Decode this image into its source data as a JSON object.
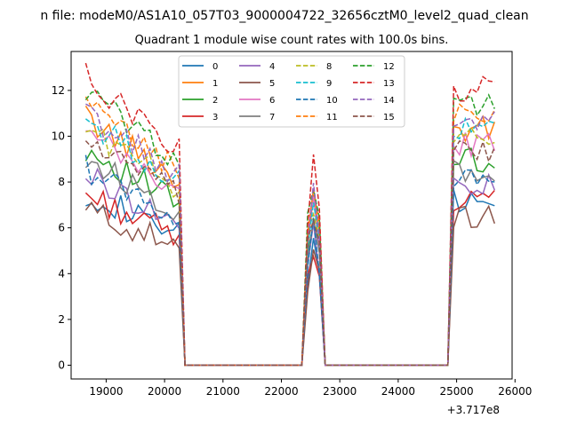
{
  "chart_data": {
    "type": "line",
    "suptitle": "n file: modeM0/AS1A10_057T03_9000004722_32656cztM0_level2_quad_clean",
    "title": "Quadrant 1 module wise count rates with 100.0s bins.",
    "xlabel": "",
    "ylabel": "",
    "x_offset_label": "+3.717e8",
    "xlim": [
      18400,
      25950
    ],
    "ylim": [
      -0.6,
      13.7
    ],
    "xticks": [
      19000,
      20000,
      21000,
      22000,
      23000,
      24000,
      25000,
      26000
    ],
    "xtick_labels": [
      "19000",
      "20000",
      "21000",
      "22000",
      "23000",
      "24000",
      "25000",
      "26000"
    ],
    "yticks": [
      0,
      2,
      4,
      6,
      8,
      10,
      12
    ],
    "ytick_labels": [
      "0",
      "2",
      "4",
      "6",
      "8",
      "10",
      "12"
    ],
    "grid": false,
    "legend_position": "upper center",
    "segments": [
      {
        "x_start": 18650,
        "x_end": 20250
      },
      {
        "x_start": 22450,
        "x_end": 22650
      },
      {
        "x_start": 24950,
        "x_end": 25650
      }
    ],
    "series": [
      {
        "name": "0",
        "color": "#1f77b4",
        "dash": "solid",
        "level": 7.2
      },
      {
        "name": "1",
        "color": "#ff7f0e",
        "dash": "solid",
        "level": 10.3
      },
      {
        "name": "2",
        "color": "#2ca02c",
        "dash": "solid",
        "level": 9.0
      },
      {
        "name": "3",
        "color": "#d62728",
        "dash": "solid",
        "level": 7.1
      },
      {
        "name": "4",
        "color": "#9467bd",
        "dash": "solid",
        "level": 7.9
      },
      {
        "name": "5",
        "color": "#8c564b",
        "dash": "solid",
        "level": 6.5
      },
      {
        "name": "6",
        "color": "#e377c2",
        "dash": "solid",
        "level": 9.6
      },
      {
        "name": "7",
        "color": "#7f7f7f",
        "dash": "solid",
        "level": 8.6
      },
      {
        "name": "8",
        "color": "#bcbd22",
        "dash": "dashed",
        "level": 9.9
      },
      {
        "name": "9",
        "color": "#17becf",
        "dash": "dashed",
        "level": 10.2
      },
      {
        "name": "10",
        "color": "#1f77b4",
        "dash": "dashed",
        "level": 8.2
      },
      {
        "name": "11",
        "color": "#ff7f0e",
        "dash": "dashed",
        "level": 10.8
      },
      {
        "name": "12",
        "color": "#2ca02c",
        "dash": "dashed",
        "level": 11.4
      },
      {
        "name": "13",
        "color": "#d62728",
        "dash": "dashed",
        "level": 12.0
      },
      {
        "name": "14",
        "color": "#9467bd",
        "dash": "dashed",
        "level": 10.5
      },
      {
        "name": "15",
        "color": "#8c564b",
        "dash": "dashed",
        "level": 9.4
      }
    ]
  }
}
